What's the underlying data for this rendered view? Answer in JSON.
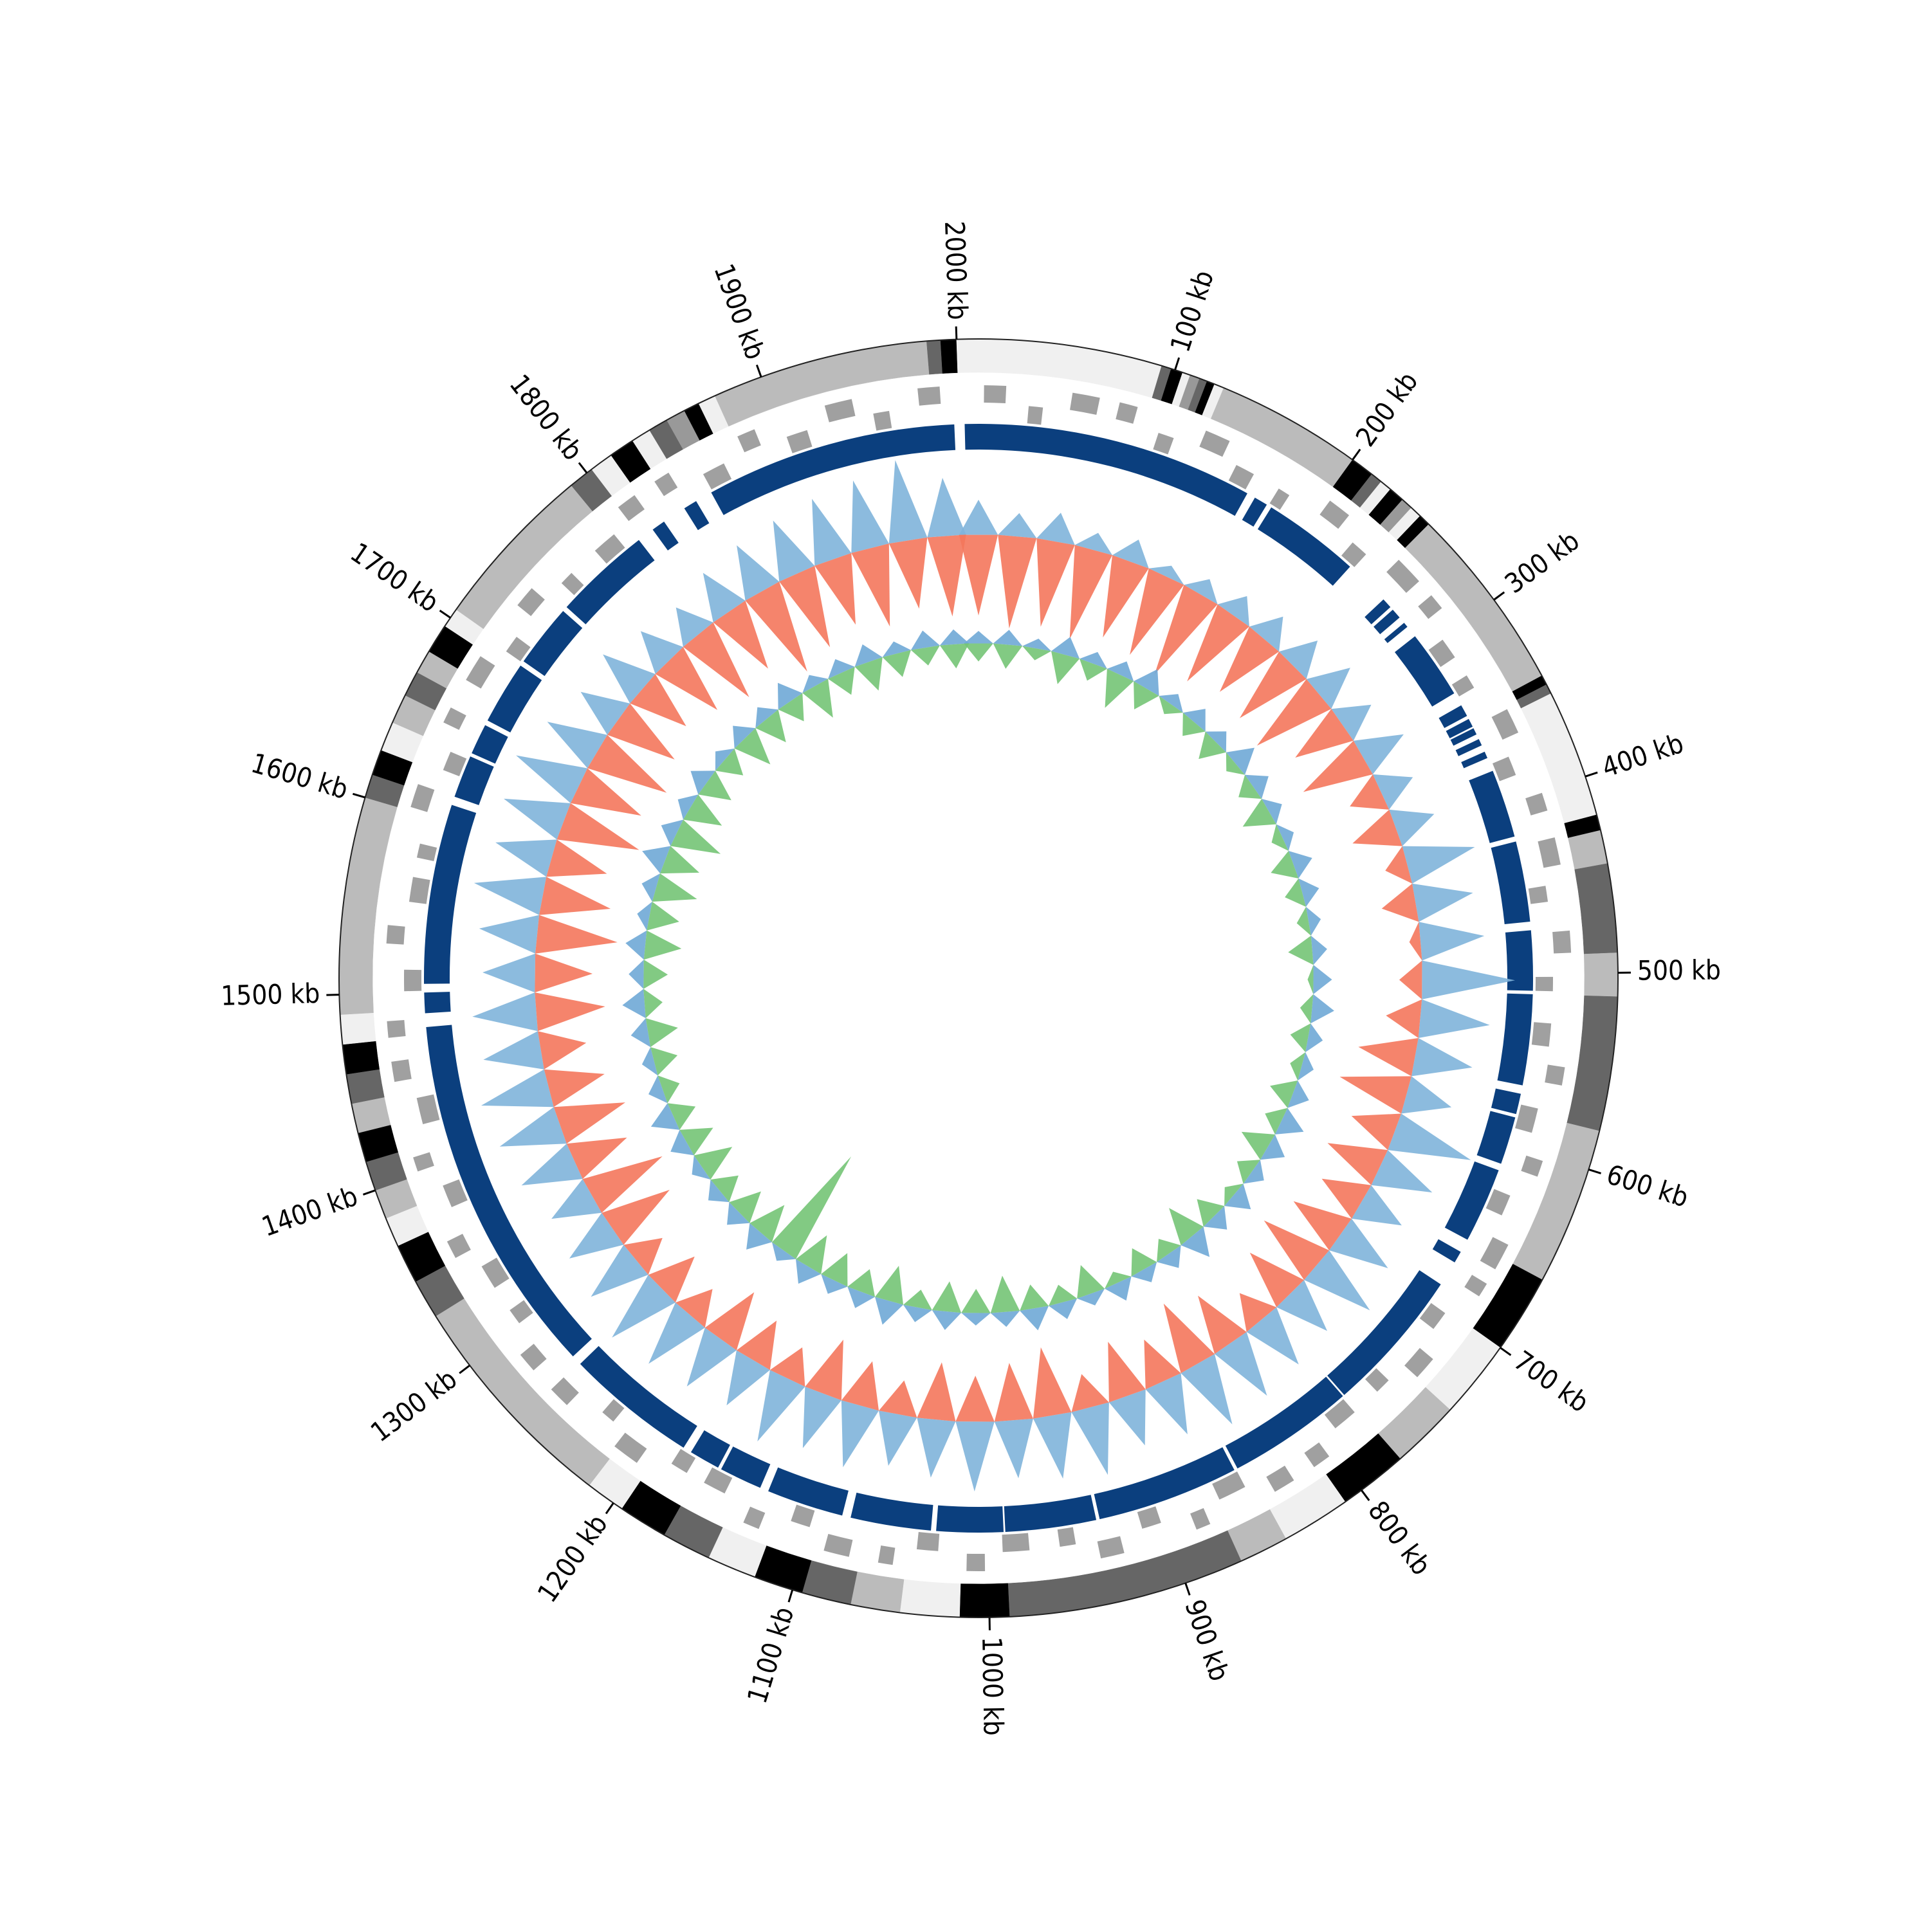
{
  "chart_data": {
    "type": "circos",
    "xlim": [
      0,
      2011
    ],
    "xticks": [
      {
        "value": 100,
        "label": "100 kb"
      },
      {
        "value": 200,
        "label": "200 kb"
      },
      {
        "value": 300,
        "label": "300 kb"
      },
      {
        "value": 400,
        "label": "400 kb"
      },
      {
        "value": 500,
        "label": "500 kb"
      },
      {
        "value": 600,
        "label": "600 kb"
      },
      {
        "value": 700,
        "label": "700 kb"
      },
      {
        "value": 800,
        "label": "800 kb"
      },
      {
        "value": 900,
        "label": "900 kb"
      },
      {
        "value": 1000,
        "label": "1000 kb"
      },
      {
        "value": 1100,
        "label": "1100 kb"
      },
      {
        "value": 1200,
        "label": "1200 kb"
      },
      {
        "value": 1300,
        "label": "1300 kb"
      },
      {
        "value": 1400,
        "label": "1400 kb"
      },
      {
        "value": 1500,
        "label": "1500 kb"
      },
      {
        "value": 1600,
        "label": "1600 kb"
      },
      {
        "value": 1700,
        "label": "1700 kb"
      },
      {
        "value": 1800,
        "label": "1800 kb"
      },
      {
        "value": 1900,
        "label": "1900 kb"
      },
      {
        "value": 2000,
        "label": "2000 kb"
      }
    ],
    "bands": [
      {
        "start": 0,
        "end": 93,
        "color": "#f0f0f0"
      },
      {
        "start": 93,
        "end": 98,
        "color": "#666666"
      },
      {
        "start": 98,
        "end": 104,
        "color": "#000000"
      },
      {
        "start": 104,
        "end": 108,
        "color": "#f0f0f0"
      },
      {
        "start": 108,
        "end": 113,
        "color": "#999999"
      },
      {
        "start": 113,
        "end": 117,
        "color": "#666666"
      },
      {
        "start": 117,
        "end": 121,
        "color": "#000000"
      },
      {
        "start": 121,
        "end": 126,
        "color": "#f0f0f0"
      },
      {
        "start": 126,
        "end": 200,
        "color": "#bbbbbb"
      },
      {
        "start": 200,
        "end": 212,
        "color": "#000000"
      },
      {
        "start": 212,
        "end": 218,
        "color": "#666666"
      },
      {
        "start": 218,
        "end": 224,
        "color": "#f0f0f0"
      },
      {
        "start": 224,
        "end": 232,
        "color": "#000000"
      },
      {
        "start": 232,
        "end": 238,
        "color": "#999999"
      },
      {
        "start": 238,
        "end": 244,
        "color": "#f0f0f0"
      },
      {
        "start": 244,
        "end": 250,
        "color": "#000000"
      },
      {
        "start": 250,
        "end": 345,
        "color": "#bbbbbb"
      },
      {
        "start": 345,
        "end": 350,
        "color": "#000000"
      },
      {
        "start": 350,
        "end": 355,
        "color": "#666666"
      },
      {
        "start": 355,
        "end": 420,
        "color": "#f0f0f0"
      },
      {
        "start": 420,
        "end": 428,
        "color": "#000000"
      },
      {
        "start": 428,
        "end": 445,
        "color": "#bbbbbb"
      },
      {
        "start": 445,
        "end": 490,
        "color": "#666666"
      },
      {
        "start": 490,
        "end": 512,
        "color": "#bbbbbb"
      },
      {
        "start": 512,
        "end": 580,
        "color": "#666666"
      },
      {
        "start": 580,
        "end": 660,
        "color": "#bbbbbb"
      },
      {
        "start": 660,
        "end": 700,
        "color": "#000000"
      },
      {
        "start": 700,
        "end": 740,
        "color": "#f0f0f0"
      },
      {
        "start": 740,
        "end": 775,
        "color": "#bbbbbb"
      },
      {
        "start": 775,
        "end": 810,
        "color": "#000000"
      },
      {
        "start": 810,
        "end": 845,
        "color": "#f0f0f0"
      },
      {
        "start": 845,
        "end": 870,
        "color": "#bbbbbb"
      },
      {
        "start": 870,
        "end": 990,
        "color": "#666666"
      },
      {
        "start": 990,
        "end": 1015,
        "color": "#000000"
      },
      {
        "start": 1015,
        "end": 1045,
        "color": "#f0f0f0"
      },
      {
        "start": 1045,
        "end": 1070,
        "color": "#bbbbbb"
      },
      {
        "start": 1070,
        "end": 1095,
        "color": "#666666"
      },
      {
        "start": 1095,
        "end": 1120,
        "color": "#000000"
      },
      {
        "start": 1120,
        "end": 1145,
        "color": "#f0f0f0"
      },
      {
        "start": 1145,
        "end": 1170,
        "color": "#666666"
      },
      {
        "start": 1170,
        "end": 1195,
        "color": "#000000"
      },
      {
        "start": 1195,
        "end": 1215,
        "color": "#f0f0f0"
      },
      {
        "start": 1215,
        "end": 1330,
        "color": "#bbbbbb"
      },
      {
        "start": 1330,
        "end": 1350,
        "color": "#666666"
      },
      {
        "start": 1350,
        "end": 1370,
        "color": "#000000"
      },
      {
        "start": 1370,
        "end": 1385,
        "color": "#f0f0f0"
      },
      {
        "start": 1385,
        "end": 1400,
        "color": "#bbbbbb"
      },
      {
        "start": 1400,
        "end": 1415,
        "color": "#666666"
      },
      {
        "start": 1415,
        "end": 1430,
        "color": "#000000"
      },
      {
        "start": 1430,
        "end": 1445,
        "color": "#bbbbbb"
      },
      {
        "start": 1445,
        "end": 1460,
        "color": "#666666"
      },
      {
        "start": 1460,
        "end": 1475,
        "color": "#000000"
      },
      {
        "start": 1475,
        "end": 1490,
        "color": "#f0f0f0"
      },
      {
        "start": 1490,
        "end": 1600,
        "color": "#bbbbbb"
      },
      {
        "start": 1600,
        "end": 1612,
        "color": "#666666"
      },
      {
        "start": 1612,
        "end": 1625,
        "color": "#000000"
      },
      {
        "start": 1625,
        "end": 1640,
        "color": "#f0f0f0"
      },
      {
        "start": 1640,
        "end": 1655,
        "color": "#bbbbbb"
      },
      {
        "start": 1655,
        "end": 1668,
        "color": "#666666"
      },
      {
        "start": 1668,
        "end": 1680,
        "color": "#bbbbbb"
      },
      {
        "start": 1680,
        "end": 1695,
        "color": "#000000"
      },
      {
        "start": 1695,
        "end": 1705,
        "color": "#f0f0f0"
      },
      {
        "start": 1705,
        "end": 1790,
        "color": "#bbbbbb"
      },
      {
        "start": 1790,
        "end": 1803,
        "color": "#666666"
      },
      {
        "start": 1803,
        "end": 1815,
        "color": "#f0f0f0"
      },
      {
        "start": 1815,
        "end": 1828,
        "color": "#000000"
      },
      {
        "start": 1828,
        "end": 1838,
        "color": "#f0f0f0"
      },
      {
        "start": 1838,
        "end": 1848,
        "color": "#666666"
      },
      {
        "start": 1848,
        "end": 1858,
        "color": "#999999"
      },
      {
        "start": 1858,
        "end": 1866,
        "color": "#000000"
      },
      {
        "start": 1866,
        "end": 1875,
        "color": "#f0f0f0"
      },
      {
        "start": 1875,
        "end": 1985,
        "color": "#bbbbbb"
      },
      {
        "start": 1985,
        "end": 1992,
        "color": "#666666"
      },
      {
        "start": 1992,
        "end": 2000,
        "color": "#000000"
      },
      {
        "start": 2000,
        "end": 2011,
        "color": "#f0f0f0"
      }
    ],
    "genes": {
      "color": "#a0a0a0",
      "start": [
        3,
        28,
        51,
        77,
        102,
        126,
        149,
        176,
        203,
        227,
        252,
        278,
        301,
        325,
        352,
        376,
        401,
        426,
        451,
        477,
        502,
        528,
        551,
        576,
        603,
        627,
        652,
        676,
        702,
        726,
        751,
        777,
        803,
        826,
        851,
        877,
        902,
        926,
        951,
        977,
        1002,
        1028,
        1052,
        1076,
        1101,
        1127,
        1152,
        1176,
        1202,
        1226,
        1251,
        1277,
        1302,
        1326,
        1351,
        1377,
        1402,
        1426,
        1452,
        1476,
        1501,
        1527,
        1551,
        1576,
        1602,
        1627,
        1651,
        1677,
        1702,
        1726,
        1751,
        1777,
        1802,
        1826,
        1851,
        1877,
        1902,
        1927,
        1952,
        1978
      ],
      "end": [
        15,
        36,
        66,
        87,
        111,
        140,
        160,
        183,
        216,
        237,
        268,
        287,
        313,
        333,
        366,
        387,
        411,
        441,
        460,
        489,
        510,
        541,
        561,
        590,
        612,
        639,
        667,
        684,
        713,
        739,
        760,
        791,
        813,
        838,
        867,
        885,
        913,
        939,
        960,
        992,
        1012,
        1040,
        1060,
        1090,
        1112,
        1136,
        1165,
        1186,
        1217,
        1234,
        1263,
        1288,
        1311,
        1340,
        1361,
        1390,
        1410,
        1441,
        1463,
        1485,
        1513,
        1537,
        1565,
        1584,
        1615,
        1638,
        1660,
        1692,
        1712,
        1738,
        1759,
        1791,
        1813,
        1835,
        1864,
        1887,
        1914,
        1942,
        1961,
        1990
      ],
      "strand": [
        1,
        -1,
        1,
        1,
        -1,
        1,
        -1,
        -1,
        1,
        -1,
        1,
        1,
        -1,
        -1,
        1,
        -1,
        1,
        1,
        -1,
        1,
        -1,
        -1,
        1,
        -1,
        1,
        -1,
        1,
        1,
        -1,
        1,
        -1,
        -1,
        1,
        1,
        -1,
        1,
        -1,
        1,
        -1,
        -1,
        1,
        -1,
        1,
        1,
        -1,
        1,
        -1,
        -1,
        1,
        -1,
        1,
        1,
        -1,
        -1,
        1,
        -1,
        1,
        -1,
        1,
        1,
        -1,
        1,
        -1,
        -1,
        1,
        -1,
        1,
        1,
        -1,
        1,
        -1,
        -1,
        1,
        1,
        -1,
        1,
        -1,
        1,
        -1,
        1
      ]
    },
    "blocks": {
      "color": "#0b3f7e",
      "start": [
        0,
        167,
        178,
        262,
        270,
        280,
        290,
        338,
        347,
        353,
        360,
        368,
        380,
        423,
        475,
        512,
        570,
        584,
        616,
        668,
        690,
        776,
        852,
        937,
        991,
        1033,
        1085,
        1135,
        1162,
        1185,
        1268,
        1488,
        1505,
        1615,
        1642,
        1663,
        1703,
        1743,
        1810,
        1832,
        1850,
        2003
      ],
      "end": [
        162,
        175,
        235,
        268,
        276,
        283,
        330,
        345,
        352,
        357,
        364,
        372,
        420,
        470,
        510,
        565,
        582,
        612,
        660,
        675,
        775,
        850,
        935,
        990,
        1030,
        1080,
        1130,
        1160,
        1180,
        1262,
        1480,
        1500,
        1610,
        1640,
        1660,
        1700,
        1740,
        1800,
        1818,
        1840,
        1997,
        2011
      ]
    },
    "x": [
      0,
      28,
      56,
      84,
      112,
      140,
      168,
      196,
      224,
      252,
      280,
      308,
      336,
      364,
      392,
      420,
      448,
      476,
      504,
      532,
      560,
      588,
      616,
      644,
      672,
      700,
      728,
      756,
      784,
      812,
      840,
      868,
      896,
      924,
      952,
      980,
      1008,
      1036,
      1064,
      1092,
      1120,
      1148,
      1176,
      1204,
      1232,
      1260,
      1288,
      1316,
      1344,
      1372,
      1400,
      1428,
      1456,
      1484,
      1512,
      1540,
      1568,
      1596,
      1624,
      1652,
      1680,
      1708,
      1736,
      1764,
      1792,
      1820,
      1848,
      1876,
      1904,
      1932,
      1960,
      1988
    ],
    "tracks": [
      {
        "ylim": [
          -1,
          1
        ],
        "series": [
          {
            "color": "#7fb4da",
            "values": [
              0.3,
              0.2,
              0.25,
              0.15,
              0.2,
              0.1,
              0.15,
              0.2,
              0.25,
              0.3,
              0.35,
              0.3,
              0.4,
              0.3,
              0.35,
              0.6,
              0.5,
              0.55,
              0.8,
              0.6,
              0.5,
              0.4,
              0.7,
              0.5,
              0.4,
              0.5,
              0.6,
              0.45,
              0.5,
              0.55,
              0.6,
              0.5,
              0.45,
              0.6,
              0.55,
              0.5,
              0.6,
              0.5,
              0.45,
              0.55,
              0.5,
              0.6,
              0.45,
              0.5,
              0.55,
              0.6,
              0.5,
              0.45,
              0.4,
              0.5,
              0.55,
              0.6,
              0.5,
              0.55,
              0.45,
              0.5,
              0.6,
              0.5,
              0.55,
              0.6,
              0.5,
              0.4,
              0.45,
              0.35,
              0.3,
              0.4,
              0.45,
              0.5,
              0.55,
              0.6,
              0.7,
              0.5
            ]
          },
          {
            "color": "#f4775c",
            "values": [
              -0.7,
              -0.8,
              -0.75,
              -0.8,
              -0.7,
              -0.75,
              -0.8,
              -0.7,
              -0.6,
              -0.65,
              -0.7,
              -0.5,
              -0.6,
              -0.3,
              -0.4,
              -0.2,
              -0.3,
              -0.1,
              -0.2,
              -0.3,
              -0.5,
              -0.6,
              -0.4,
              -0.5,
              -0.4,
              -0.5,
              -0.6,
              -0.5,
              -0.3,
              -0.5,
              -0.6,
              -0.4,
              -0.5,
              -0.3,
              -0.6,
              -0.5,
              -0.4,
              -0.5,
              -0.3,
              -0.4,
              -0.5,
              -0.3,
              -0.4,
              -0.5,
              -0.3,
              -0.4,
              -0.3,
              -0.6,
              -0.7,
              -0.5,
              -0.6,
              -0.5,
              -0.4,
              -0.6,
              -0.5,
              -0.7,
              -0.6,
              -0.5,
              -0.7,
              -0.6,
              -0.7,
              -0.6,
              -0.5,
              -0.6,
              -0.7,
              -0.6,
              -0.8,
              -0.7,
              -0.6,
              -0.7,
              -0.6,
              -0.7
            ]
          }
        ]
      },
      {
        "ylim": [
          -1,
          1
        ],
        "series": [
          {
            "color": "#6fa8d6",
            "values": [
              0.1,
              0.12,
              0.08,
              0.15,
              0.1,
              0.12,
              0.18,
              0.1,
              0.14,
              0.12,
              0.2,
              0.15,
              0.12,
              0.1,
              0.16,
              0.14,
              0.1,
              0.12,
              0.15,
              0.18,
              0.12,
              0.1,
              0.14,
              0.2,
              0.16,
              0.12,
              0.18,
              0.15,
              0.22,
              0.14,
              0.12,
              0.16,
              0.1,
              0.14,
              0.18,
              0.12,
              0.1,
              0.15,
              0.12,
              0.2,
              0.14,
              0.12,
              0.16,
              0.1,
              0.18,
              0.14,
              0.12,
              0.1,
              0.15,
              0.2,
              0.12,
              0.1,
              0.14,
              0.18,
              0.12,
              0.16,
              0.1,
              0.12,
              0.2,
              0.14,
              0.12,
              0.16,
              0.1,
              0.14,
              0.12,
              0.18,
              0.1,
              0.12,
              0.15,
              0.1,
              0.14,
              0.12
            ]
          },
          {
            "color": "#74c476",
            "values": [
              -0.15,
              -0.2,
              -0.1,
              -0.25,
              -0.15,
              -0.3,
              -0.2,
              -0.1,
              -0.15,
              -0.2,
              -0.1,
              -0.15,
              -0.25,
              -0.1,
              -0.2,
              -0.15,
              -0.1,
              -0.2,
              -0.05,
              -0.1,
              -0.15,
              -0.1,
              -0.2,
              -0.15,
              -0.25,
              -0.15,
              -0.1,
              -0.2,
              -0.3,
              -0.15,
              -0.2,
              -0.1,
              -0.25,
              -0.15,
              -0.2,
              -0.3,
              -0.2,
              -0.25,
              -0.15,
              -0.3,
              -0.2,
              -0.25,
              -0.3,
              -0.95,
              -0.3,
              -0.25,
              -0.2,
              -0.3,
              -0.25,
              -0.2,
              -0.15,
              -0.2,
              -0.25,
              -0.15,
              -0.2,
              -0.3,
              -0.25,
              -0.35,
              -0.3,
              -0.4,
              -0.3,
              -0.25,
              -0.2,
              -0.3,
              -0.25,
              -0.2,
              -0.3,
              -0.2,
              -0.25,
              -0.2,
              -0.15,
              -0.2
            ]
          }
        ]
      }
    ]
  }
}
